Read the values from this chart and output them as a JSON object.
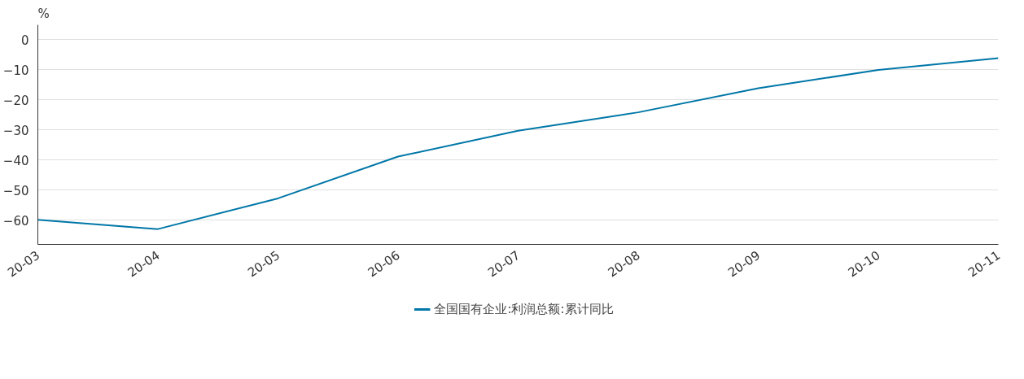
{
  "chart_data": {
    "type": "line",
    "ylabel": "%",
    "categories": [
      "20-03",
      "20-04",
      "20-05",
      "20-06",
      "20-07",
      "20-08",
      "20-09",
      "20-10",
      "20-11"
    ],
    "series": [
      {
        "name": "全国国有企业:利润总额:累计同比",
        "color": "#0077a8",
        "values": [
          -59.8,
          -62.9,
          -52.7,
          -38.8,
          -30.2,
          -24.1,
          -16.1,
          -10.0,
          -6.1
        ]
      }
    ],
    "ylim": [
      -68,
      5
    ],
    "yticks": [
      -60,
      -50,
      -40,
      -30,
      -20,
      -10,
      0
    ],
    "grid": "y",
    "legend": "bottom",
    "marker": "none",
    "line_style": "solid"
  }
}
